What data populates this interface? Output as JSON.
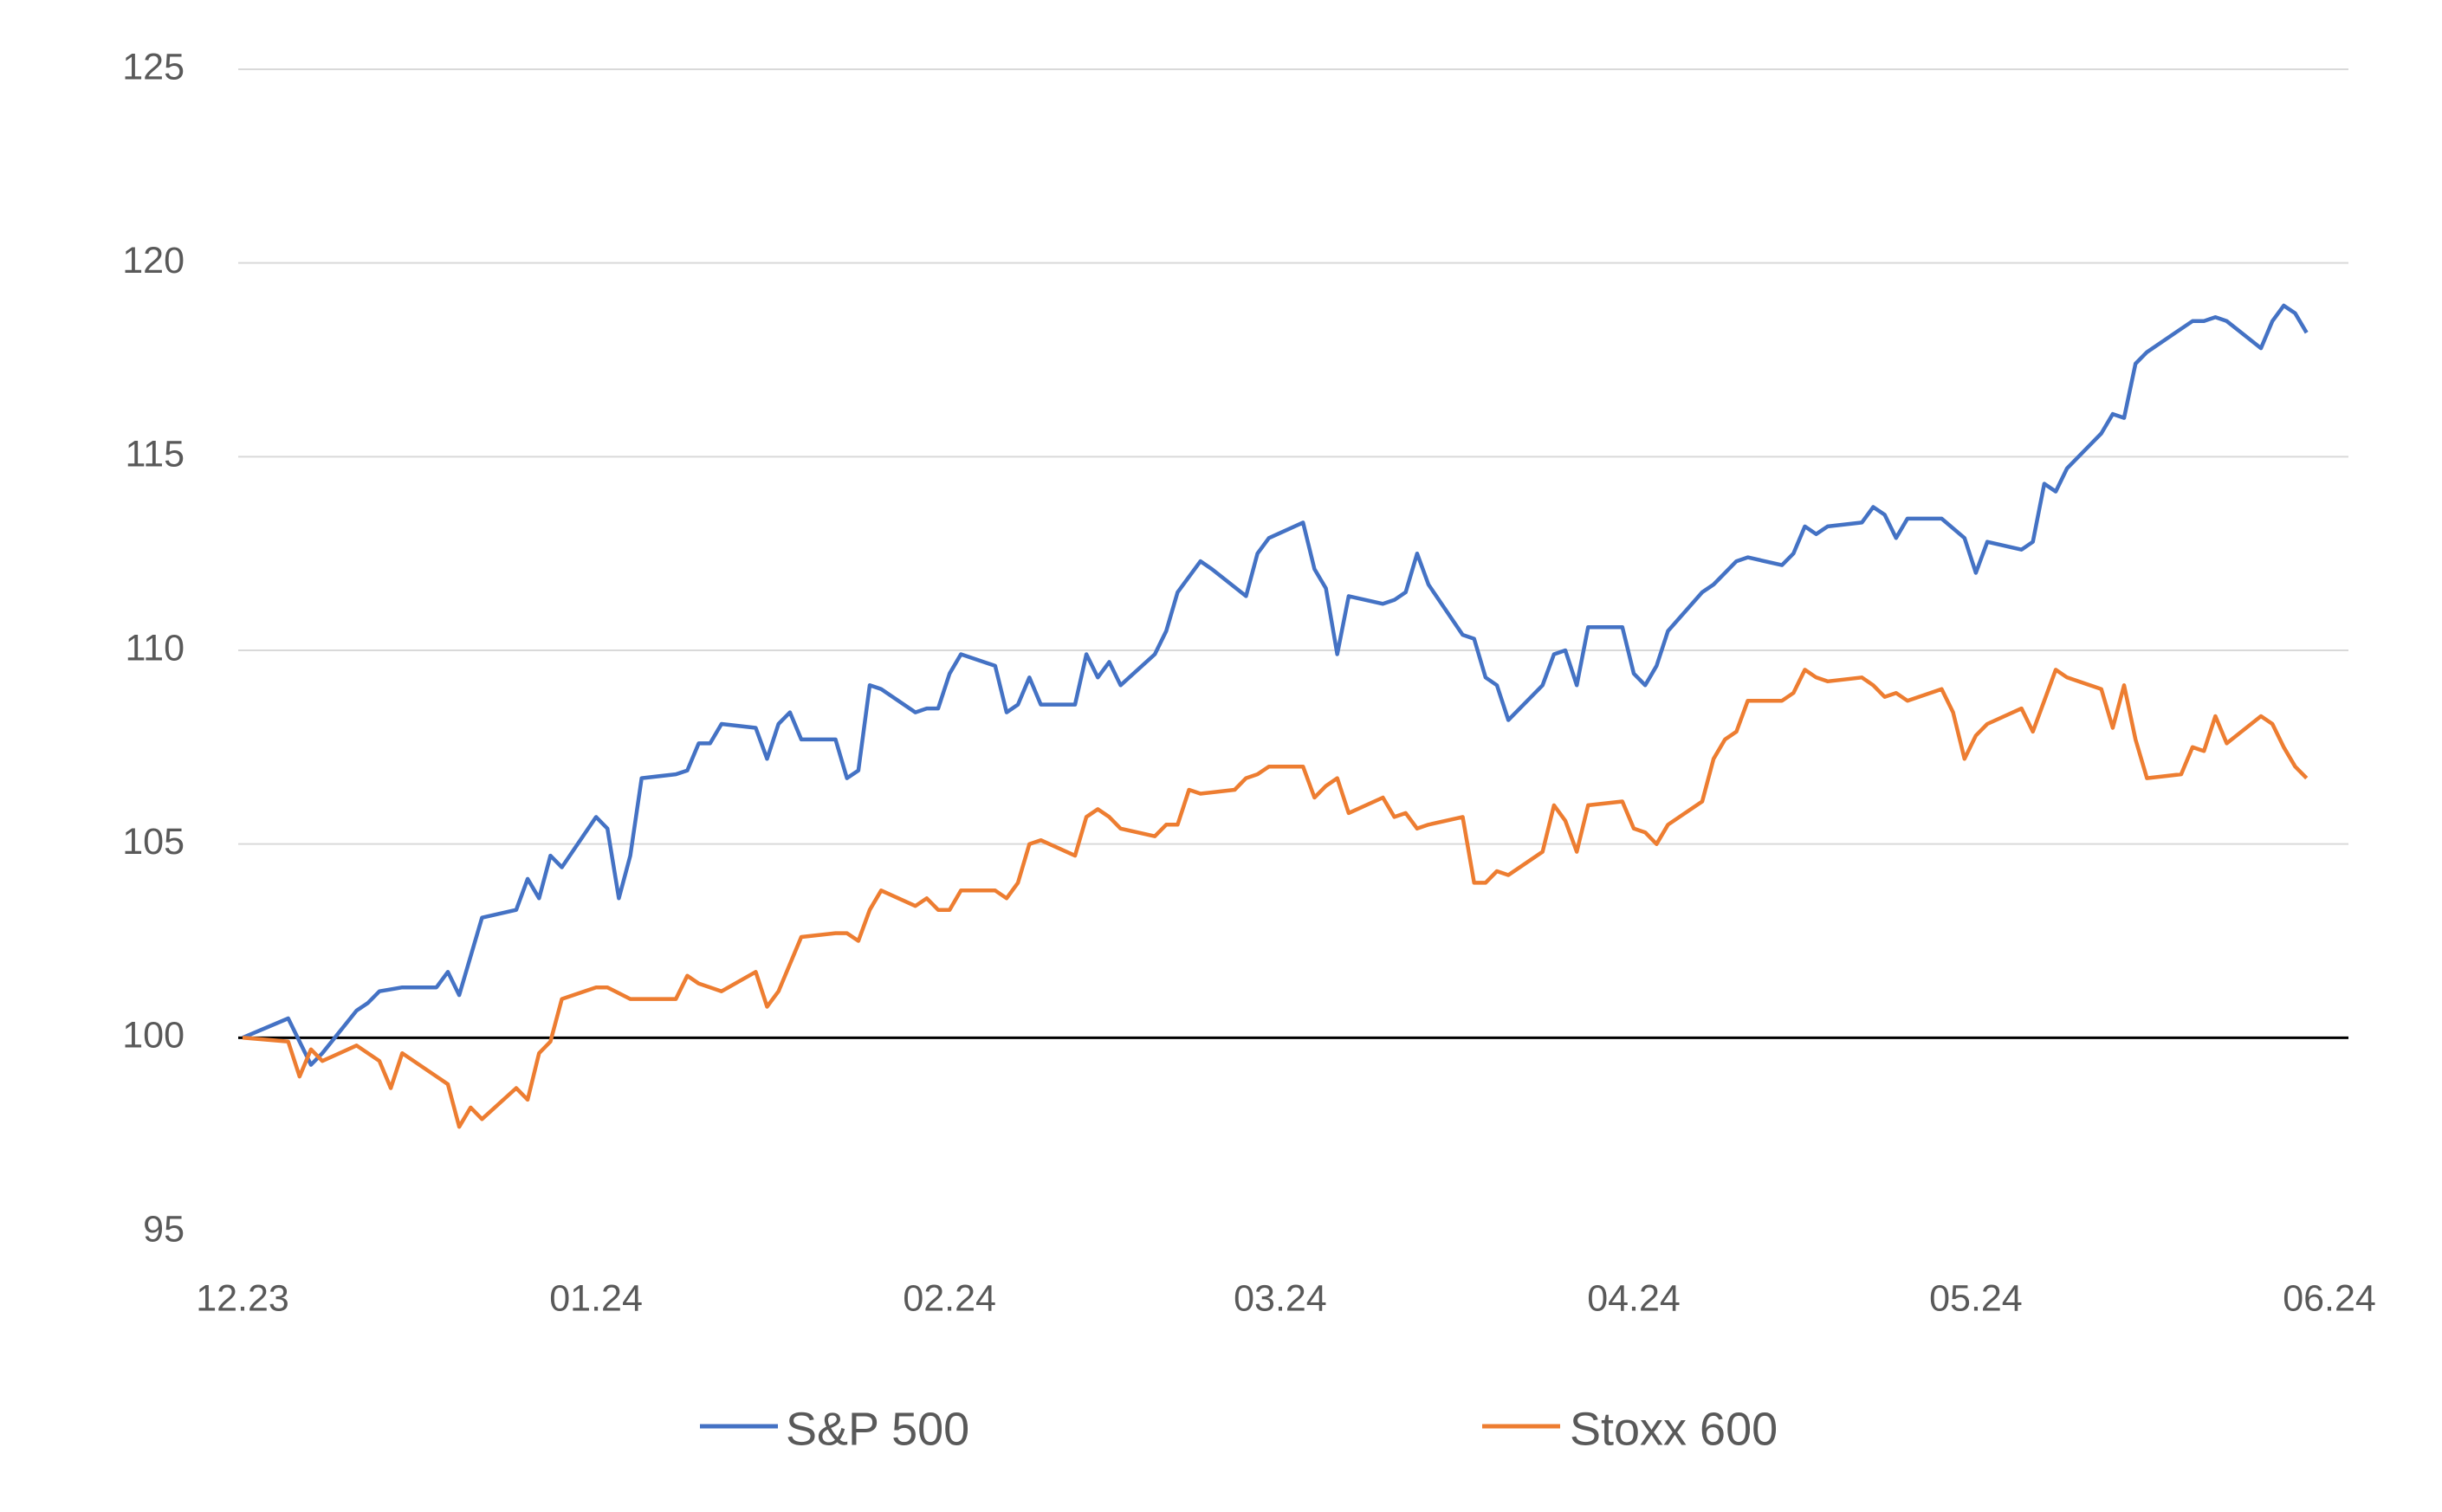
{
  "chart_data": {
    "type": "line",
    "title": "",
    "xlabel": "",
    "ylabel": "",
    "x_unit": "days from 12.23 tick",
    "xlim": [
      0,
      183
    ],
    "ylim": [
      95,
      125
    ],
    "grid": true,
    "baseline": 100,
    "legend_position": "bottom",
    "x_ticks": [
      {
        "label": "12.23",
        "x": 0
      },
      {
        "label": "01.24",
        "x": 31
      },
      {
        "label": "02.24",
        "x": 62
      },
      {
        "label": "03.24",
        "x": 91
      },
      {
        "label": "04.24",
        "x": 122
      },
      {
        "label": "05.24",
        "x": 152
      },
      {
        "label": "06.24",
        "x": 183
      }
    ],
    "y_ticks": [
      {
        "label": "95",
        "y": 95
      },
      {
        "label": "100",
        "y": 100
      },
      {
        "label": "105",
        "y": 105
      },
      {
        "label": "110",
        "y": 110
      },
      {
        "label": "115",
        "y": 115
      },
      {
        "label": "120",
        "y": 120
      },
      {
        "label": "125",
        "y": 125
      }
    ],
    "series": [
      {
        "name": "S&P 500",
        "color": "#4472C4",
        "points": [
          [
            0,
            100.0
          ],
          [
            4,
            100.5
          ],
          [
            5,
            99.9
          ],
          [
            6,
            99.3
          ],
          [
            7,
            99.6
          ],
          [
            10,
            100.7
          ],
          [
            11,
            100.9
          ],
          [
            12,
            101.2
          ],
          [
            14,
            101.3
          ],
          [
            17,
            101.3
          ],
          [
            18,
            101.7
          ],
          [
            19,
            101.1
          ],
          [
            21,
            103.1
          ],
          [
            24,
            103.3
          ],
          [
            25,
            104.1
          ],
          [
            26,
            103.6
          ],
          [
            27,
            104.7
          ],
          [
            28,
            104.4
          ],
          [
            31,
            105.7
          ],
          [
            32,
            105.4
          ],
          [
            33,
            103.6
          ],
          [
            34,
            104.7
          ],
          [
            35,
            106.7
          ],
          [
            38,
            106.8
          ],
          [
            39,
            106.9
          ],
          [
            40,
            107.6
          ],
          [
            41,
            107.6
          ],
          [
            42,
            108.1
          ],
          [
            45,
            108.0
          ],
          [
            46,
            107.2
          ],
          [
            47,
            108.1
          ],
          [
            48,
            108.4
          ],
          [
            49,
            107.7
          ],
          [
            52,
            107.7
          ],
          [
            53,
            106.7
          ],
          [
            54,
            106.9
          ],
          [
            55,
            109.1
          ],
          [
            56,
            109.0
          ],
          [
            59,
            108.4
          ],
          [
            60,
            108.5
          ],
          [
            61,
            108.5
          ],
          [
            62,
            109.4
          ],
          [
            63,
            109.9
          ],
          [
            66,
            109.6
          ],
          [
            67,
            108.4
          ],
          [
            68,
            108.6
          ],
          [
            69,
            109.3
          ],
          [
            70,
            108.6
          ],
          [
            73,
            108.6
          ],
          [
            74,
            109.9
          ],
          [
            75,
            109.3
          ],
          [
            76,
            109.7
          ],
          [
            77,
            109.1
          ],
          [
            80,
            109.9
          ],
          [
            81,
            110.5
          ],
          [
            82,
            111.5
          ],
          [
            84,
            112.3
          ],
          [
            85,
            112.1
          ],
          [
            88,
            111.4
          ],
          [
            89,
            112.5
          ],
          [
            90,
            112.9
          ],
          [
            93,
            113.3
          ],
          [
            94,
            112.1
          ],
          [
            95,
            111.6
          ],
          [
            96,
            109.9
          ],
          [
            97,
            111.4
          ],
          [
            100,
            111.2
          ],
          [
            101,
            111.3
          ],
          [
            102,
            111.5
          ],
          [
            103,
            112.5
          ],
          [
            104,
            111.7
          ],
          [
            107,
            110.4
          ],
          [
            108,
            110.3
          ],
          [
            109,
            109.3
          ],
          [
            110,
            109.1
          ],
          [
            111,
            108.2
          ],
          [
            114,
            109.1
          ],
          [
            115,
            109.9
          ],
          [
            116,
            110.0
          ],
          [
            117,
            109.1
          ],
          [
            118,
            110.6
          ],
          [
            121,
            110.6
          ],
          [
            122,
            109.4
          ],
          [
            123,
            109.1
          ],
          [
            124,
            109.6
          ],
          [
            125,
            110.5
          ],
          [
            128,
            111.5
          ],
          [
            129,
            111.7
          ],
          [
            131,
            112.3
          ],
          [
            132,
            112.4
          ],
          [
            135,
            112.2
          ],
          [
            136,
            112.5
          ],
          [
            137,
            113.2
          ],
          [
            138,
            113.0
          ],
          [
            139,
            113.2
          ],
          [
            142,
            113.3
          ],
          [
            143,
            113.7
          ],
          [
            144,
            113.5
          ],
          [
            145,
            112.9
          ],
          [
            146,
            113.4
          ],
          [
            149,
            113.4
          ],
          [
            151,
            112.9
          ],
          [
            152,
            112.0
          ],
          [
            153,
            112.8
          ],
          [
            156,
            112.6
          ],
          [
            157,
            112.8
          ],
          [
            158,
            114.3
          ],
          [
            159,
            114.1
          ],
          [
            160,
            114.7
          ],
          [
            163,
            115.6
          ],
          [
            164,
            116.1
          ],
          [
            165,
            116.0
          ],
          [
            166,
            117.4
          ],
          [
            167,
            117.7
          ],
          [
            170,
            118.3
          ],
          [
            171,
            118.5
          ],
          [
            172,
            118.5
          ],
          [
            173,
            118.6
          ],
          [
            174,
            118.5
          ],
          [
            177,
            117.8
          ],
          [
            178,
            118.5
          ],
          [
            179,
            118.9
          ],
          [
            180,
            118.7
          ],
          [
            181,
            118.2
          ]
        ]
      },
      {
        "name": "Stoxx 600",
        "color": "#ED7D31",
        "points": [
          [
            0,
            100.0
          ],
          [
            4,
            99.9
          ],
          [
            5,
            99.0
          ],
          [
            6,
            99.7
          ],
          [
            7,
            99.4
          ],
          [
            10,
            99.8
          ],
          [
            12,
            99.4
          ],
          [
            13,
            98.7
          ],
          [
            14,
            99.6
          ],
          [
            18,
            98.8
          ],
          [
            19,
            97.7
          ],
          [
            20,
            98.2
          ],
          [
            21,
            97.9
          ],
          [
            24,
            98.7
          ],
          [
            25,
            98.4
          ],
          [
            26,
            99.6
          ],
          [
            27,
            99.9
          ],
          [
            28,
            101.0
          ],
          [
            31,
            101.3
          ],
          [
            32,
            101.3
          ],
          [
            34,
            101.0
          ],
          [
            38,
            101.0
          ],
          [
            39,
            101.6
          ],
          [
            40,
            101.4
          ],
          [
            42,
            101.2
          ],
          [
            45,
            101.7
          ],
          [
            46,
            100.8
          ],
          [
            47,
            101.2
          ],
          [
            49,
            102.6
          ],
          [
            52,
            102.7
          ],
          [
            53,
            102.7
          ],
          [
            54,
            102.5
          ],
          [
            55,
            103.3
          ],
          [
            56,
            103.8
          ],
          [
            59,
            103.4
          ],
          [
            60,
            103.6
          ],
          [
            61,
            103.3
          ],
          [
            62,
            103.3
          ],
          [
            63,
            103.8
          ],
          [
            66,
            103.8
          ],
          [
            67,
            103.6
          ],
          [
            68,
            104.0
          ],
          [
            69,
            105.0
          ],
          [
            70,
            105.1
          ],
          [
            73,
            104.7
          ],
          [
            74,
            105.7
          ],
          [
            75,
            105.9
          ],
          [
            76,
            105.7
          ],
          [
            77,
            105.4
          ],
          [
            80,
            105.2
          ],
          [
            81,
            105.5
          ],
          [
            82,
            105.5
          ],
          [
            83,
            106.4
          ],
          [
            84,
            106.3
          ],
          [
            87,
            106.4
          ],
          [
            88,
            106.7
          ],
          [
            89,
            106.8
          ],
          [
            90,
            107.0
          ],
          [
            93,
            107.0
          ],
          [
            94,
            106.2
          ],
          [
            95,
            106.5
          ],
          [
            96,
            106.7
          ],
          [
            97,
            105.8
          ],
          [
            100,
            106.2
          ],
          [
            101,
            105.7
          ],
          [
            102,
            105.8
          ],
          [
            103,
            105.4
          ],
          [
            104,
            105.5
          ],
          [
            107,
            105.7
          ],
          [
            108,
            104.0
          ],
          [
            109,
            104.0
          ],
          [
            110,
            104.3
          ],
          [
            111,
            104.2
          ],
          [
            114,
            104.8
          ],
          [
            115,
            106.0
          ],
          [
            116,
            105.6
          ],
          [
            117,
            104.8
          ],
          [
            118,
            106.0
          ],
          [
            121,
            106.1
          ],
          [
            122,
            105.4
          ],
          [
            123,
            105.3
          ],
          [
            124,
            105.0
          ],
          [
            125,
            105.5
          ],
          [
            128,
            106.1
          ],
          [
            129,
            107.2
          ],
          [
            130,
            107.7
          ],
          [
            131,
            107.9
          ],
          [
            132,
            108.7
          ],
          [
            135,
            108.7
          ],
          [
            136,
            108.9
          ],
          [
            137,
            109.5
          ],
          [
            138,
            109.3
          ],
          [
            139,
            109.2
          ],
          [
            142,
            109.3
          ],
          [
            143,
            109.1
          ],
          [
            144,
            108.8
          ],
          [
            145,
            108.9
          ],
          [
            146,
            108.7
          ],
          [
            149,
            109.0
          ],
          [
            150,
            108.4
          ],
          [
            151,
            107.2
          ],
          [
            152,
            107.8
          ],
          [
            153,
            108.1
          ],
          [
            156,
            108.5
          ],
          [
            157,
            107.9
          ],
          [
            158,
            108.7
          ],
          [
            159,
            109.5
          ],
          [
            160,
            109.3
          ],
          [
            163,
            109.0
          ],
          [
            164,
            108.0
          ],
          [
            165,
            109.1
          ],
          [
            166,
            107.7
          ],
          [
            167,
            106.7
          ],
          [
            170,
            106.8
          ],
          [
            171,
            107.5
          ],
          [
            172,
            107.4
          ],
          [
            173,
            108.3
          ],
          [
            174,
            107.6
          ],
          [
            177,
            108.3
          ],
          [
            178,
            108.1
          ],
          [
            179,
            107.5
          ],
          [
            180,
            107.0
          ],
          [
            181,
            106.7
          ]
        ]
      }
    ]
  }
}
